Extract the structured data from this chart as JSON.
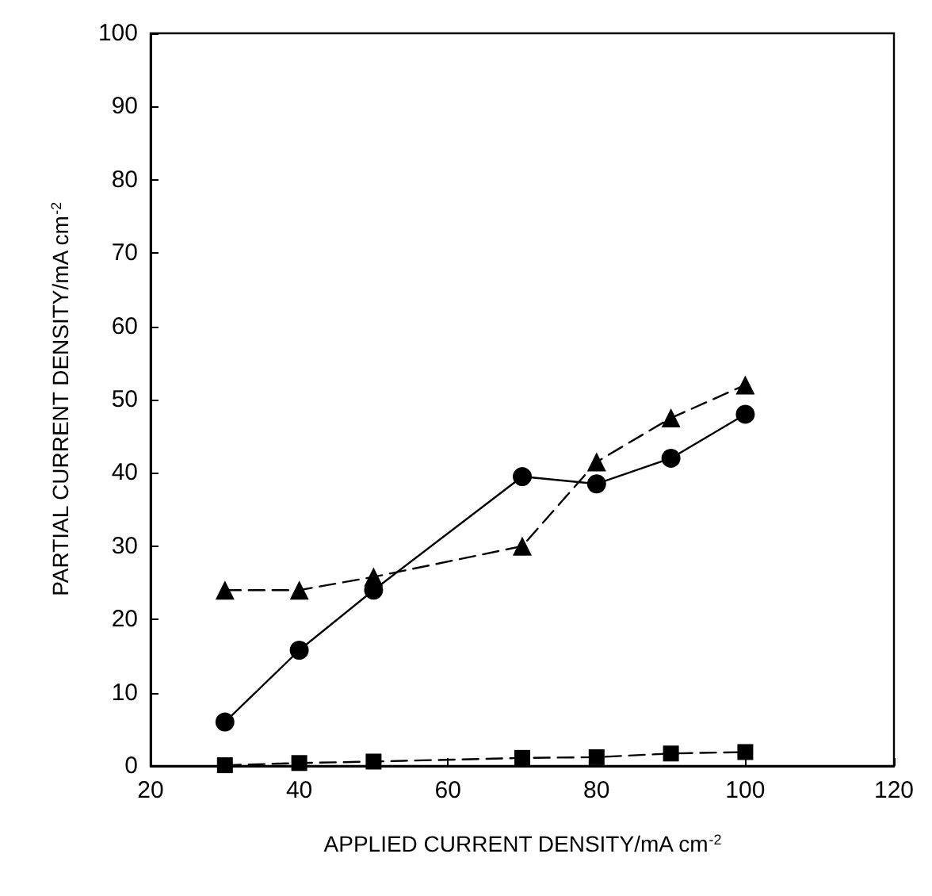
{
  "chart_data": {
    "type": "line",
    "xlabel": "APPLIED CURRENT DENSITY/mA cm$^{-2}$",
    "ylabel": "PARTIAL CURRENT DENSITY/mA cm$^{-2}$",
    "x": [
      30,
      40,
      50,
      70,
      80,
      90,
      100
    ],
    "series": [
      {
        "color": "#000000",
        "marker": "circle",
        "line_style": "solid",
        "values": [
          6,
          15.8,
          24,
          39.5,
          38.5,
          42,
          48
        ]
      },
      {
        "color": "#000000",
        "marker": "triangle",
        "line_style": "dashed",
        "values": [
          24,
          24,
          25.8,
          30,
          41.5,
          47.5,
          52
        ]
      },
      {
        "color": "#000000",
        "marker": "square",
        "line_style": "dashed",
        "values": [
          0.1,
          0.4,
          0.6,
          1.1,
          1.2,
          1.7,
          1.9
        ]
      }
    ],
    "xlim": [
      20,
      120
    ],
    "xticks": [
      20,
      40,
      60,
      80,
      100,
      120
    ],
    "ylim": [
      0,
      100
    ],
    "yticks": [
      0,
      10,
      20,
      30,
      40,
      50,
      60,
      70,
      80,
      90,
      100
    ]
  }
}
